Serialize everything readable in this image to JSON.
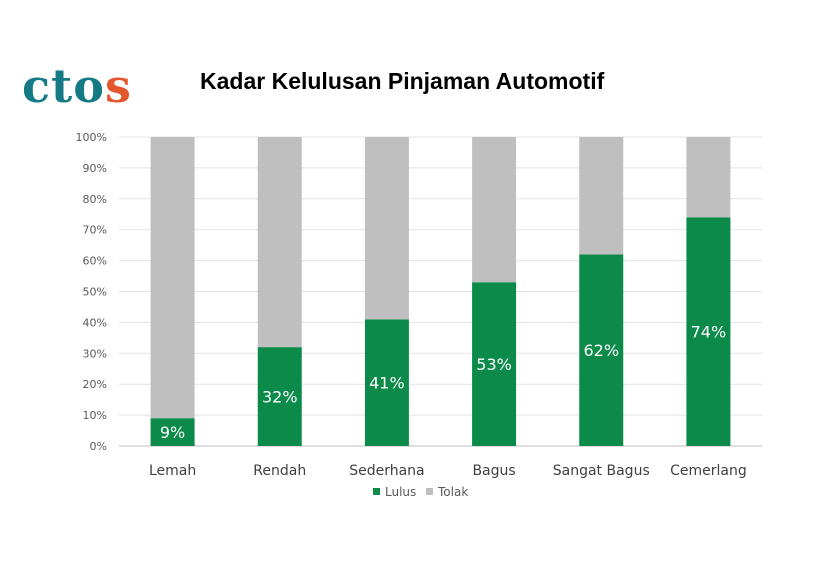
{
  "logo": {
    "part1": "cto",
    "part2": "s"
  },
  "chart_data": {
    "type": "bar",
    "stacked": true,
    "title": "Kadar Kelulusan Pinjaman Automotif",
    "categories": [
      "Lemah",
      "Rendah",
      "Sederhana",
      "Bagus",
      "Sangat Bagus",
      "Cemerlang"
    ],
    "series": [
      {
        "name": "Lulus",
        "color": "#0b8a4a",
        "values": [
          9,
          32,
          41,
          53,
          62,
          74
        ]
      },
      {
        "name": "Tolak",
        "color": "#bfbfbf",
        "values": [
          91,
          68,
          59,
          47,
          38,
          26
        ]
      }
    ],
    "data_labels": [
      "9%",
      "32%",
      "41%",
      "53%",
      "62%",
      "74%"
    ],
    "ylim": [
      0,
      100
    ],
    "yticks": [
      "0%",
      "10%",
      "20%",
      "30%",
      "40%",
      "50%",
      "60%",
      "70%",
      "80%",
      "90%",
      "100%"
    ],
    "xlabel": "",
    "ylabel": "",
    "grid": true,
    "legend": "bottom-center"
  }
}
